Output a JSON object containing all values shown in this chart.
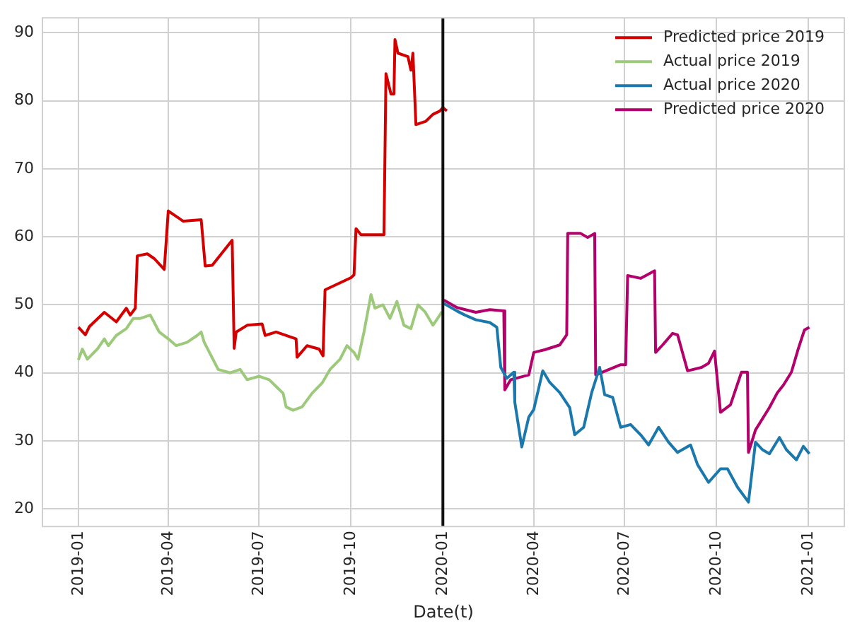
{
  "chart_data": {
    "type": "line",
    "xlabel": "Date(t)",
    "xlim": [
      "2018-11-26",
      "2021-02-06"
    ],
    "xticks": [
      "2019-01",
      "2019-04",
      "2019-07",
      "2019-10",
      "2020-01",
      "2020-04",
      "2020-07",
      "2020-10",
      "2021-01"
    ],
    "ylim": [
      17.4,
      92.2
    ],
    "yticks": [
      20,
      30,
      40,
      50,
      60,
      70,
      80,
      90
    ],
    "grid": true,
    "legend": "top right",
    "marker": "none",
    "line_style": "solid",
    "ref_lines": [
      {
        "axis": "x",
        "value": "2020-01-01",
        "color": "#111111"
      }
    ],
    "series": [
      {
        "name": "Predicted price 2019",
        "color": "#d40000",
        "x": [
          "2019-01-01",
          "2019-01-08",
          "2019-01-12",
          "2019-01-27",
          "2019-02-08",
          "2019-02-18",
          "2019-02-22",
          "2019-02-27",
          "2019-03-01",
          "2019-03-11",
          "2019-03-18",
          "2019-03-28",
          "2019-04-01",
          "2019-04-16",
          "2019-05-04",
          "2019-05-08",
          "2019-05-15",
          "2019-06-04",
          "2019-06-06",
          "2019-06-08",
          "2019-06-19",
          "2019-07-04",
          "2019-07-07",
          "2019-07-18",
          "2019-08-07",
          "2019-08-08",
          "2019-08-18",
          "2019-08-30",
          "2019-09-03",
          "2019-09-05",
          "2019-10-01",
          "2019-10-04",
          "2019-10-06",
          "2019-10-11",
          "2019-11-03",
          "2019-11-05",
          "2019-11-10",
          "2019-11-13",
          "2019-11-14",
          "2019-11-17",
          "2019-11-27",
          "2019-11-30",
          "2019-12-02",
          "2019-12-05",
          "2019-12-15",
          "2019-12-22",
          "2019-12-29",
          "2020-01-01",
          "2020-01-05"
        ],
        "values": [
          46.7,
          45.6,
          46.8,
          48.9,
          47.5,
          49.5,
          48.5,
          49.5,
          57.2,
          57.5,
          56.8,
          55.2,
          63.8,
          62.3,
          62.5,
          55.7,
          55.8,
          59.5,
          43.6,
          46,
          47,
          47.2,
          45.5,
          46,
          45,
          42.3,
          44,
          43.5,
          42.5,
          52.2,
          54,
          54.4,
          61.2,
          60.3,
          60.3,
          84,
          81,
          81,
          89,
          87,
          86.5,
          84.5,
          87,
          76.5,
          77,
          78,
          78.5,
          79,
          78.5
        ]
      },
      {
        "name": "Actual price 2019",
        "color": "#9cc97a",
        "x": [
          "2019-01-01",
          "2019-01-05",
          "2019-01-10",
          "2019-01-20",
          "2019-01-27",
          "2019-01-31",
          "2019-02-08",
          "2019-02-18",
          "2019-02-25",
          "2019-03-04",
          "2019-03-14",
          "2019-03-23",
          "2019-04-01",
          "2019-04-09",
          "2019-04-20",
          "2019-04-30",
          "2019-05-04",
          "2019-05-07",
          "2019-05-21",
          "2019-06-02",
          "2019-06-12",
          "2019-06-19",
          "2019-07-01",
          "2019-07-11",
          "2019-07-18",
          "2019-07-25",
          "2019-07-28",
          "2019-08-04",
          "2019-08-13",
          "2019-08-23",
          "2019-09-02",
          "2019-09-10",
          "2019-09-20",
          "2019-09-27",
          "2019-10-04",
          "2019-10-08",
          "2019-10-14",
          "2019-10-21",
          "2019-10-25",
          "2019-11-02",
          "2019-11-09",
          "2019-11-16",
          "2019-11-23",
          "2019-11-30",
          "2019-12-07",
          "2019-12-14",
          "2019-12-22",
          "2019-12-29",
          "2019-12-31"
        ],
        "values": [
          41.9,
          43.5,
          42,
          43.5,
          45,
          44,
          45.5,
          46.5,
          48,
          48,
          48.5,
          46,
          45,
          44,
          44.5,
          45.5,
          46,
          44.5,
          40.5,
          40,
          40.5,
          39,
          39.5,
          39,
          38,
          37,
          35,
          34.5,
          35,
          37,
          38.5,
          40.5,
          42,
          44,
          43,
          42,
          46,
          51.5,
          49.5,
          50,
          48,
          50.5,
          47,
          46.5,
          50,
          49,
          47,
          48.5,
          49
        ]
      },
      {
        "name": "Actual price 2020",
        "color": "#1b78ad",
        "x": [
          "2020-01-02",
          "2020-01-15",
          "2020-01-23",
          "2020-02-03",
          "2020-02-17",
          "2020-02-24",
          "2020-02-28",
          "2020-03-05",
          "2020-03-12",
          "2020-03-13",
          "2020-03-20",
          "2020-03-27",
          "2020-04-01",
          "2020-04-10",
          "2020-04-17",
          "2020-04-27",
          "2020-05-07",
          "2020-05-12",
          "2020-05-21",
          "2020-05-29",
          "2020-06-06",
          "2020-06-11",
          "2020-06-19",
          "2020-06-27",
          "2020-07-07",
          "2020-07-17",
          "2020-07-25",
          "2020-08-04",
          "2020-08-14",
          "2020-08-23",
          "2020-09-05",
          "2020-09-12",
          "2020-09-23",
          "2020-10-05",
          "2020-10-12",
          "2020-10-22",
          "2020-11-02",
          "2020-11-09",
          "2020-11-16",
          "2020-11-23",
          "2020-12-03",
          "2020-12-10",
          "2020-12-20",
          "2020-12-27",
          "2021-01-02"
        ],
        "values": [
          50.2,
          49.1,
          48.5,
          47.8,
          47.4,
          46.7,
          40.8,
          39.2,
          40.1,
          35.7,
          29.1,
          33.5,
          34.6,
          40.3,
          38.6,
          37.1,
          34.9,
          30.9,
          32,
          37.1,
          40.8,
          36.8,
          36.4,
          32,
          32.4,
          30.9,
          29.4,
          32,
          29.8,
          28.3,
          29.4,
          26.5,
          23.9,
          25.9,
          25.9,
          23.2,
          21,
          29.8,
          28.7,
          28.1,
          30.5,
          28.7,
          27.2,
          29.2,
          28.1
        ]
      },
      {
        "name": "Predicted price 2020",
        "color": "#b3006b",
        "x": [
          "2020-01-02",
          "2020-01-15",
          "2020-02-03",
          "2020-02-17",
          "2020-03-02",
          "2020-03-03",
          "2020-03-09",
          "2020-03-27",
          "2020-04-01",
          "2020-04-12",
          "2020-04-27",
          "2020-05-04",
          "2020-05-05",
          "2020-05-18",
          "2020-05-25",
          "2020-06-01",
          "2020-06-02",
          "2020-06-12",
          "2020-06-27",
          "2020-07-02",
          "2020-07-04",
          "2020-07-17",
          "2020-07-31",
          "2020-08-01",
          "2020-08-08",
          "2020-08-18",
          "2020-08-23",
          "2020-09-02",
          "2020-09-16",
          "2020-09-23",
          "2020-09-29",
          "2020-10-05",
          "2020-10-15",
          "2020-10-26",
          "2020-11-01",
          "2020-11-02",
          "2020-11-09",
          "2020-11-23",
          "2020-12-01",
          "2020-12-07",
          "2020-12-15",
          "2020-12-22",
          "2020-12-28",
          "2021-01-02"
        ],
        "values": [
          50.7,
          49.6,
          48.9,
          49.3,
          49.1,
          37.5,
          39,
          39.7,
          43,
          43.4,
          44.1,
          45.6,
          60.5,
          60.5,
          59.9,
          60.5,
          39.7,
          40.3,
          41.2,
          41.2,
          54.3,
          53.9,
          55,
          43,
          44.1,
          45.8,
          45.6,
          40.3,
          40.8,
          41.4,
          43.2,
          34.2,
          35.3,
          40.1,
          40.1,
          28.3,
          31.6,
          34.9,
          37.1,
          38.2,
          40.1,
          43.6,
          46.3,
          46.7
        ]
      }
    ]
  }
}
